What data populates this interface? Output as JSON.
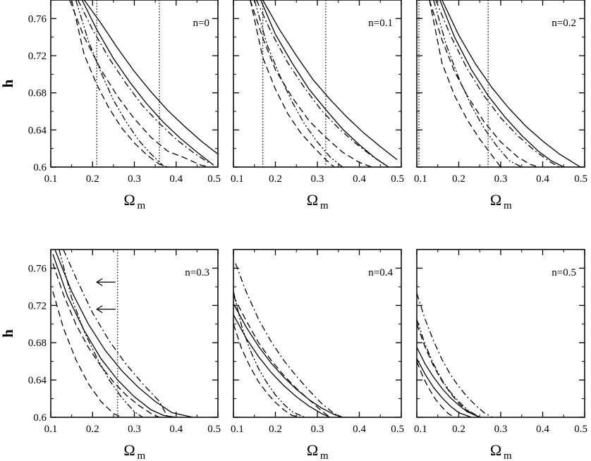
{
  "chart_data": [
    {
      "type": "line",
      "label": "n=0",
      "xlabel": "Ω",
      "xlabel_sub": "m",
      "ylabel": "h",
      "xlim": [
        0.1,
        0.5
      ],
      "ylim": [
        0.6,
        0.78
      ],
      "xticks": [
        0.1,
        0.2,
        0.3,
        0.4,
        0.5
      ],
      "xtick_labels": [
        "0.1",
        "0.2",
        "0.3",
        "0.4",
        "0.5"
      ],
      "yticks": [
        0.6,
        0.64,
        0.68,
        0.72,
        0.76
      ],
      "ytick_labels": [
        "0.6",
        "0.64",
        "0.68",
        "0.72",
        "0.76"
      ],
      "vlines": [
        0.21,
        0.36
      ],
      "arrows": [],
      "series": [
        {
          "style": "solid",
          "x": [
            0.18,
            0.22,
            0.26,
            0.3,
            0.34,
            0.38,
            0.42,
            0.46,
            0.5
          ],
          "y": [
            0.78,
            0.755,
            0.728,
            0.703,
            0.681,
            0.661,
            0.644,
            0.628,
            0.614
          ]
        },
        {
          "style": "solid",
          "x": [
            0.175,
            0.21,
            0.25,
            0.29,
            0.33,
            0.37,
            0.41,
            0.45,
            0.49
          ],
          "y": [
            0.78,
            0.748,
            0.717,
            0.691,
            0.668,
            0.648,
            0.631,
            0.616,
            0.602
          ]
        },
        {
          "style": "dashed",
          "x": [
            0.145,
            0.18,
            0.22,
            0.26,
            0.3,
            0.34,
            0.38,
            0.42,
            0.46,
            0.48
          ],
          "y": [
            0.78,
            0.74,
            0.705,
            0.676,
            0.652,
            0.632,
            0.617,
            0.61,
            0.602,
            0.6
          ]
        },
        {
          "style": "dashed",
          "x": [
            0.15,
            0.18,
            0.21,
            0.24,
            0.27,
            0.3,
            0.33,
            0.36,
            0.38
          ],
          "y": [
            0.78,
            0.721,
            0.689,
            0.663,
            0.642,
            0.626,
            0.613,
            0.603,
            0.6
          ]
        },
        {
          "style": "dashdot",
          "x": [
            0.165,
            0.2,
            0.24,
            0.28,
            0.32,
            0.36,
            0.4,
            0.44,
            0.48
          ],
          "y": [
            0.78,
            0.748,
            0.717,
            0.69,
            0.666,
            0.647,
            0.63,
            0.616,
            0.604
          ]
        },
        {
          "style": "dashdotdot",
          "x": [
            0.16,
            0.19,
            0.22,
            0.25,
            0.28,
            0.31,
            0.34,
            0.37
          ],
          "y": [
            0.78,
            0.736,
            0.702,
            0.672,
            0.649,
            0.629,
            0.614,
            0.601
          ]
        }
      ]
    },
    {
      "type": "line",
      "label": "n=0.1",
      "xlabel": "Ω",
      "xlabel_sub": "m",
      "ylabel": "",
      "xlim": [
        0.1,
        0.5
      ],
      "ylim": [
        0.6,
        0.78
      ],
      "xticks": [
        0.1,
        0.2,
        0.3,
        0.4,
        0.5
      ],
      "xtick_labels": [
        "0.1",
        "0.2",
        "0.3",
        "0.4",
        "0.5"
      ],
      "yticks": [
        0.6,
        0.64,
        0.68,
        0.72,
        0.76
      ],
      "ytick_labels": [],
      "vlines": [
        0.17,
        0.32
      ],
      "arrows": [],
      "series": [
        {
          "style": "solid",
          "x": [
            0.17,
            0.21,
            0.25,
            0.29,
            0.33,
            0.37,
            0.41,
            0.45,
            0.49
          ],
          "y": [
            0.78,
            0.748,
            0.72,
            0.694,
            0.673,
            0.654,
            0.637,
            0.622,
            0.608
          ]
        },
        {
          "style": "solid",
          "x": [
            0.165,
            0.2,
            0.24,
            0.28,
            0.32,
            0.36,
            0.4,
            0.44,
            0.47
          ],
          "y": [
            0.78,
            0.743,
            0.712,
            0.684,
            0.662,
            0.641,
            0.624,
            0.609,
            0.6
          ]
        },
        {
          "style": "dashed",
          "x": [
            0.14,
            0.17,
            0.2,
            0.24,
            0.28,
            0.32,
            0.36,
            0.4,
            0.43
          ],
          "y": [
            0.78,
            0.739,
            0.705,
            0.675,
            0.65,
            0.632,
            0.616,
            0.605,
            0.6
          ]
        },
        {
          "style": "dashed",
          "x": [
            0.14,
            0.17,
            0.2,
            0.23,
            0.26,
            0.29,
            0.32,
            0.34
          ],
          "y": [
            0.78,
            0.718,
            0.684,
            0.657,
            0.637,
            0.622,
            0.608,
            0.6
          ]
        },
        {
          "style": "dashdot",
          "x": [
            0.155,
            0.19,
            0.23,
            0.27,
            0.31,
            0.35,
            0.39,
            0.43,
            0.46
          ],
          "y": [
            0.78,
            0.745,
            0.712,
            0.685,
            0.661,
            0.642,
            0.626,
            0.612,
            0.603
          ]
        },
        {
          "style": "dashdotdot",
          "x": [
            0.15,
            0.18,
            0.21,
            0.24,
            0.27,
            0.3,
            0.33,
            0.36
          ],
          "y": [
            0.78,
            0.732,
            0.699,
            0.67,
            0.646,
            0.627,
            0.611,
            0.6
          ]
        }
      ]
    },
    {
      "type": "line",
      "label": "n=0.2",
      "xlabel": "Ω",
      "xlabel_sub": "m",
      "ylabel": "",
      "xlim": [
        0.1,
        0.5
      ],
      "ylim": [
        0.6,
        0.78
      ],
      "xticks": [
        0.1,
        0.2,
        0.3,
        0.4,
        0.5
      ],
      "xtick_labels": [
        "0.1",
        "0.2",
        "0.3",
        "0.4",
        "0.5"
      ],
      "yticks": [
        0.6,
        0.64,
        0.68,
        0.72,
        0.76
      ],
      "ytick_labels": [],
      "vlines": [
        0.105,
        0.27
      ],
      "arrows": [],
      "series": [
        {
          "style": "solid",
          "x": [
            0.16,
            0.2,
            0.24,
            0.28,
            0.32,
            0.36,
            0.4,
            0.44,
            0.49
          ],
          "y": [
            0.78,
            0.742,
            0.711,
            0.685,
            0.663,
            0.644,
            0.628,
            0.614,
            0.6
          ]
        },
        {
          "style": "solid",
          "x": [
            0.155,
            0.19,
            0.23,
            0.27,
            0.31,
            0.35,
            0.39,
            0.42,
            0.45
          ],
          "y": [
            0.78,
            0.74,
            0.705,
            0.677,
            0.654,
            0.634,
            0.617,
            0.607,
            0.6
          ]
        },
        {
          "style": "dashed",
          "x": [
            0.13,
            0.16,
            0.19,
            0.22,
            0.26,
            0.3,
            0.34,
            0.37,
            0.39
          ],
          "y": [
            0.78,
            0.737,
            0.703,
            0.677,
            0.649,
            0.627,
            0.611,
            0.603,
            0.6
          ]
        },
        {
          "style": "dashed",
          "x": [
            0.13,
            0.16,
            0.19,
            0.22,
            0.25,
            0.28,
            0.3
          ],
          "y": [
            0.78,
            0.712,
            0.677,
            0.651,
            0.63,
            0.612,
            0.6
          ]
        },
        {
          "style": "dashdot",
          "x": [
            0.145,
            0.18,
            0.22,
            0.26,
            0.3,
            0.34,
            0.38,
            0.42,
            0.44
          ],
          "y": [
            0.78,
            0.742,
            0.706,
            0.677,
            0.653,
            0.634,
            0.618,
            0.605,
            0.6
          ]
        },
        {
          "style": "dashdotdot",
          "x": [
            0.14,
            0.17,
            0.2,
            0.23,
            0.26,
            0.29,
            0.32,
            0.35
          ],
          "y": [
            0.78,
            0.732,
            0.696,
            0.666,
            0.642,
            0.623,
            0.607,
            0.6
          ]
        }
      ]
    },
    {
      "type": "line",
      "label": "n=0.3",
      "xlabel": "Ω",
      "xlabel_sub": "m",
      "ylabel": "h",
      "xlim": [
        0.1,
        0.5
      ],
      "ylim": [
        0.6,
        0.78
      ],
      "xticks": [
        0.1,
        0.2,
        0.3,
        0.4,
        0.5
      ],
      "xtick_labels": [
        "0.1",
        "0.2",
        "0.3",
        "0.4",
        "0.5"
      ],
      "yticks": [
        0.6,
        0.64,
        0.68,
        0.72,
        0.76
      ],
      "ytick_labels": [
        "0.6",
        "0.64",
        "0.68",
        "0.72",
        "0.76"
      ],
      "vlines": [
        0.26
      ],
      "arrows": [
        {
          "x_from": 0.255,
          "x_to": 0.21,
          "y": 0.745
        },
        {
          "x_from": 0.255,
          "x_to": 0.21,
          "y": 0.716
        }
      ],
      "series": [
        {
          "style": "solid",
          "x": [
            0.11,
            0.15,
            0.19,
            0.23,
            0.27,
            0.31,
            0.35,
            0.39,
            0.44
          ],
          "y": [
            0.78,
            0.735,
            0.7,
            0.672,
            0.65,
            0.632,
            0.617,
            0.605,
            0.6
          ]
        },
        {
          "style": "solid",
          "x": [
            0.105,
            0.14,
            0.18,
            0.22,
            0.26,
            0.3,
            0.34,
            0.37,
            0.4
          ],
          "y": [
            0.775,
            0.73,
            0.693,
            0.663,
            0.64,
            0.622,
            0.608,
            0.602,
            0.6
          ]
        },
        {
          "style": "dashed",
          "x": [
            0.105,
            0.13,
            0.16,
            0.19,
            0.22,
            0.25,
            0.28,
            0.31,
            0.34,
            0.36
          ],
          "y": [
            0.765,
            0.732,
            0.7,
            0.675,
            0.655,
            0.638,
            0.624,
            0.613,
            0.604,
            0.6
          ]
        },
        {
          "style": "dashed",
          "x": [
            0.105,
            0.13,
            0.16,
            0.19,
            0.22,
            0.25,
            0.27
          ],
          "y": [
            0.735,
            0.696,
            0.662,
            0.636,
            0.617,
            0.604,
            0.6
          ]
        },
        {
          "style": "dashdot",
          "x": [
            0.13,
            0.16,
            0.2,
            0.24,
            0.28,
            0.32,
            0.36,
            0.38
          ],
          "y": [
            0.78,
            0.75,
            0.712,
            0.682,
            0.657,
            0.636,
            0.617,
            0.6
          ]
        },
        {
          "style": "dashdotdot",
          "x": [
            0.12,
            0.15,
            0.18,
            0.21,
            0.24,
            0.27,
            0.3,
            0.32
          ],
          "y": [
            0.78,
            0.728,
            0.692,
            0.664,
            0.64,
            0.621,
            0.606,
            0.6
          ]
        }
      ]
    },
    {
      "type": "line",
      "label": "n=0.4",
      "xlabel": "Ω",
      "xlabel_sub": "m",
      "ylabel": "",
      "xlim": [
        0.1,
        0.5
      ],
      "ylim": [
        0.6,
        0.78
      ],
      "xticks": [
        0.1,
        0.2,
        0.3,
        0.4,
        0.5
      ],
      "xtick_labels": [
        "0.1",
        "0.2",
        "0.3",
        "0.4",
        "0.5"
      ],
      "yticks": [
        0.6,
        0.64,
        0.68,
        0.72,
        0.76
      ],
      "ytick_labels": [],
      "vlines": [],
      "arrows": [],
      "series": [
        {
          "style": "solid",
          "x": [
            0.1,
            0.13,
            0.16,
            0.19,
            0.22,
            0.25,
            0.28,
            0.31,
            0.34,
            0.36
          ],
          "y": [
            0.722,
            0.697,
            0.676,
            0.658,
            0.643,
            0.63,
            0.619,
            0.61,
            0.603,
            0.6
          ]
        },
        {
          "style": "solid",
          "x": [
            0.1,
            0.13,
            0.16,
            0.19,
            0.22,
            0.25,
            0.28,
            0.31,
            0.33
          ],
          "y": [
            0.71,
            0.685,
            0.665,
            0.648,
            0.634,
            0.622,
            0.612,
            0.604,
            0.6
          ]
        },
        {
          "style": "dashed",
          "x": [
            0.1,
            0.13,
            0.16,
            0.19,
            0.22,
            0.25,
            0.28,
            0.31,
            0.33
          ],
          "y": [
            0.73,
            0.704,
            0.68,
            0.661,
            0.645,
            0.631,
            0.619,
            0.607,
            0.6
          ]
        },
        {
          "style": "dashed",
          "x": [
            0.1,
            0.12,
            0.14,
            0.16,
            0.18,
            0.2,
            0.22,
            0.24,
            0.26
          ],
          "y": [
            0.7,
            0.673,
            0.654,
            0.638,
            0.626,
            0.616,
            0.608,
            0.602,
            0.6
          ]
        },
        {
          "style": "dashdot",
          "x": [
            0.105,
            0.13,
            0.16,
            0.19,
            0.22,
            0.25,
            0.28,
            0.31,
            0.34,
            0.36
          ],
          "y": [
            0.765,
            0.735,
            0.705,
            0.681,
            0.661,
            0.644,
            0.629,
            0.615,
            0.604,
            0.6
          ]
        },
        {
          "style": "dashdotdot",
          "x": [
            0.1,
            0.12,
            0.14,
            0.16,
            0.18,
            0.2,
            0.22,
            0.24,
            0.27
          ],
          "y": [
            0.735,
            0.697,
            0.672,
            0.652,
            0.637,
            0.624,
            0.614,
            0.606,
            0.6
          ]
        }
      ]
    },
    {
      "type": "line",
      "label": "n=0.5",
      "xlabel": "Ω",
      "xlabel_sub": "m",
      "ylabel": "",
      "xlim": [
        0.1,
        0.5
      ],
      "ylim": [
        0.6,
        0.78
      ],
      "xticks": [
        0.1,
        0.2,
        0.3,
        0.4,
        0.5
      ],
      "xtick_labels": [
        "0.1",
        "0.2",
        "0.3",
        "0.4",
        "0.5"
      ],
      "yticks": [
        0.6,
        0.64,
        0.68,
        0.72,
        0.76
      ],
      "ytick_labels": [],
      "vlines": [],
      "arrows": [],
      "series": [
        {
          "style": "solid",
          "x": [
            0.1,
            0.12,
            0.14,
            0.16,
            0.18,
            0.2,
            0.22,
            0.25
          ],
          "y": [
            0.675,
            0.657,
            0.643,
            0.631,
            0.621,
            0.613,
            0.606,
            0.6
          ]
        },
        {
          "style": "solid",
          "x": [
            0.1,
            0.12,
            0.14,
            0.16,
            0.18,
            0.2,
            0.23
          ],
          "y": [
            0.663,
            0.646,
            0.632,
            0.621,
            0.612,
            0.605,
            0.6
          ]
        },
        {
          "style": "dashed",
          "x": [
            0.1,
            0.12,
            0.14,
            0.16,
            0.18,
            0.2,
            0.22,
            0.25
          ],
          "y": [
            0.7,
            0.675,
            0.655,
            0.639,
            0.626,
            0.615,
            0.607,
            0.6
          ]
        },
        {
          "style": "dashed",
          "x": [
            0.1,
            0.115,
            0.13,
            0.145,
            0.16,
            0.175,
            0.19
          ],
          "y": [
            0.66,
            0.643,
            0.63,
            0.619,
            0.611,
            0.604,
            0.6
          ]
        },
        {
          "style": "dashdot",
          "x": [
            0.1,
            0.12,
            0.14,
            0.16,
            0.18,
            0.2,
            0.22,
            0.24,
            0.26,
            0.28
          ],
          "y": [
            0.733,
            0.705,
            0.682,
            0.662,
            0.646,
            0.633,
            0.622,
            0.613,
            0.605,
            0.6
          ]
        },
        {
          "style": "dashdotdot",
          "x": [
            0.1,
            0.12,
            0.14,
            0.16,
            0.18,
            0.2,
            0.22,
            0.25
          ],
          "y": [
            0.705,
            0.678,
            0.657,
            0.64,
            0.627,
            0.617,
            0.608,
            0.6
          ]
        }
      ]
    }
  ]
}
